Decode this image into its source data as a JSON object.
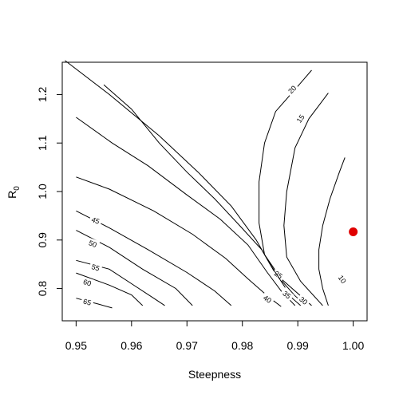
{
  "chart_data": {
    "type": "contour",
    "xlabel": "Steepness",
    "ylabel": "R",
    "ylabel_subscript": "0",
    "xlim": [
      0.9475,
      1.0025
    ],
    "ylim": [
      0.7335,
      1.2665
    ],
    "x_ticks": [
      0.95,
      0.96,
      0.97,
      0.98,
      0.99,
      1.0
    ],
    "x_tick_labels": [
      "0.95",
      "0.96",
      "0.97",
      "0.98",
      "0.99",
      "1.00"
    ],
    "y_ticks": [
      0.8,
      0.9,
      1.0,
      1.1,
      1.2
    ],
    "y_tick_labels": [
      "0.8",
      "0.9",
      "1.0",
      "1.1",
      "1.2"
    ],
    "point": {
      "x": 1.0,
      "y": 0.917,
      "color": "#e00000"
    },
    "line_color": "#000000",
    "contours": [
      {
        "level": "10",
        "points": [
          [
            0.9955,
            0.765
          ],
          [
            0.9945,
            0.8
          ],
          [
            0.9938,
            0.84
          ],
          [
            0.9938,
            0.88
          ],
          [
            0.9945,
            0.93
          ],
          [
            0.9958,
            0.985
          ],
          [
            0.9975,
            1.04
          ],
          [
            0.9985,
            1.07
          ]
        ],
        "label_at": [
          0.998,
          0.819
        ],
        "label_angle": 55
      },
      {
        "level": "15",
        "points": [
          [
            0.9945,
            0.765
          ],
          [
            0.9905,
            0.815
          ],
          [
            0.988,
            0.865
          ],
          [
            0.9875,
            0.93
          ],
          [
            0.988,
            1.0
          ],
          [
            0.9895,
            1.09
          ],
          [
            0.992,
            1.15
          ],
          [
            0.9955,
            1.203
          ]
        ],
        "label_at": [
          0.9905,
          1.15
        ],
        "label_angle": -55
      },
      {
        "level": "20",
        "points": [
          [
            0.9925,
            0.765
          ],
          [
            0.987,
            0.82
          ],
          [
            0.984,
            0.87
          ],
          [
            0.983,
            0.935
          ],
          [
            0.983,
            1.02
          ],
          [
            0.984,
            1.1
          ],
          [
            0.986,
            1.165
          ],
          [
            0.99,
            1.217
          ],
          [
            0.9925,
            1.25
          ]
        ],
        "label_at": [
          0.989,
          1.21
        ],
        "label_angle": -45
      },
      {
        "level": "25",
        "points": [
          [
            0.955,
            1.22
          ],
          [
            0.96,
            1.17
          ],
          [
            0.965,
            1.1
          ],
          [
            0.97,
            1.04
          ],
          [
            0.975,
            0.985
          ],
          [
            0.9795,
            0.93
          ],
          [
            0.9835,
            0.88
          ],
          [
            0.986,
            0.83
          ],
          [
            0.9895,
            0.785
          ],
          [
            0.9915,
            0.765
          ]
        ],
        "label_at": [
          0.9865,
          0.828
        ],
        "label_angle": 35
      },
      {
        "level": "30",
        "points": [
          [
            0.948,
            1.27
          ],
          [
            0.956,
            1.2
          ],
          [
            0.965,
            1.115
          ],
          [
            0.972,
            1.04
          ],
          [
            0.978,
            0.97
          ],
          [
            0.9825,
            0.9
          ],
          [
            0.985,
            0.85
          ],
          [
            0.987,
            0.815
          ],
          [
            0.989,
            0.78
          ],
          [
            0.9905,
            0.765
          ]
        ],
        "label_at": [
          0.991,
          0.775
        ],
        "label_angle": 40
      },
      {
        "level": "35",
        "points": [
          [
            0.95,
            1.153
          ],
          [
            0.9565,
            1.1
          ],
          [
            0.963,
            1.053
          ],
          [
            0.97,
            0.993
          ],
          [
            0.976,
            0.943
          ],
          [
            0.981,
            0.89
          ],
          [
            0.9845,
            0.833
          ],
          [
            0.987,
            0.795
          ],
          [
            0.9895,
            0.765
          ]
        ],
        "label_at": [
          0.988,
          0.787
        ],
        "label_angle": 40
      },
      {
        "level": "40",
        "points": [
          [
            0.95,
            1.03
          ],
          [
            0.956,
            1.005
          ],
          [
            0.964,
            0.96
          ],
          [
            0.971,
            0.912
          ],
          [
            0.977,
            0.862
          ],
          [
            0.981,
            0.82
          ],
          [
            0.985,
            0.78
          ],
          [
            0.987,
            0.763
          ]
        ],
        "label_at": [
          0.9845,
          0.778
        ],
        "label_angle": 35
      },
      {
        "level": "45",
        "points": [
          [
            0.95,
            0.96
          ],
          [
            0.956,
            0.925
          ],
          [
            0.963,
            0.88
          ],
          [
            0.97,
            0.833
          ],
          [
            0.975,
            0.795
          ],
          [
            0.978,
            0.765
          ]
        ],
        "label_at": [
          0.9535,
          0.94
        ],
        "label_angle": 20
      },
      {
        "level": "50",
        "points": [
          [
            0.95,
            0.92
          ],
          [
            0.956,
            0.885
          ],
          [
            0.962,
            0.84
          ],
          [
            0.968,
            0.8
          ],
          [
            0.971,
            0.765
          ]
        ],
        "label_at": [
          0.953,
          0.892
        ],
        "label_angle": 20
      },
      {
        "level": "55",
        "points": [
          [
            0.95,
            0.858
          ],
          [
            0.956,
            0.84
          ],
          [
            0.96,
            0.81
          ],
          [
            0.964,
            0.78
          ],
          [
            0.966,
            0.765
          ]
        ],
        "label_at": [
          0.9535,
          0.843
        ],
        "label_angle": 18
      },
      {
        "level": "60",
        "points": [
          [
            0.95,
            0.832
          ],
          [
            0.956,
            0.807
          ],
          [
            0.96,
            0.787
          ],
          [
            0.962,
            0.765
          ]
        ],
        "label_at": [
          0.952,
          0.812
        ],
        "label_angle": 18
      },
      {
        "level": "65",
        "points": [
          [
            0.95,
            0.78
          ],
          [
            0.954,
            0.768
          ],
          [
            0.9565,
            0.76
          ]
        ],
        "label_at": [
          0.952,
          0.772
        ],
        "label_angle": 15
      }
    ]
  }
}
